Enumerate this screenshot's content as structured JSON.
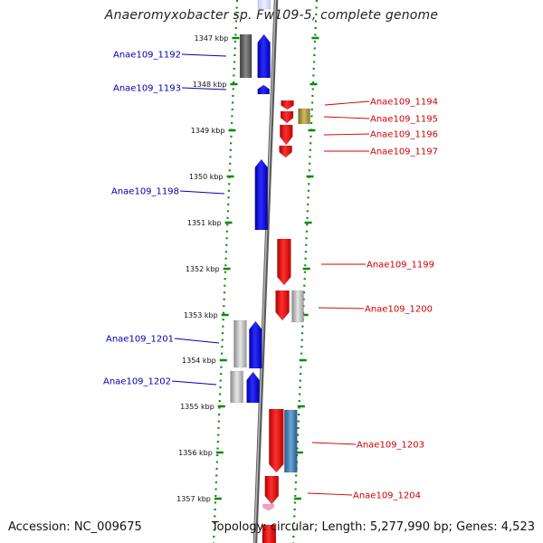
{
  "header": {
    "title": "Anaeromyxobacter sp. Fw109-5, complete genome"
  },
  "footer": {
    "accession": "Accession: NC_009675",
    "summary": "Topology: circular; Length: 5,277,990 bp; Genes: 4,523"
  },
  "colors": {
    "forward_strand": "#ff0000",
    "reverse_strand": "#0000ff",
    "left_label": "#0000b0",
    "right_label": "#d00000",
    "scale_dots": "#0a8a0a",
    "backbone": "#888888",
    "other_gene": "#a8a8a8"
  },
  "ticks": [
    "1347 kbp",
    "1348 kbp",
    "1349 kbp",
    "1350 kbp",
    "1351 kbp",
    "1352 kbp",
    "1353 kbp",
    "1354 kbp",
    "1355 kbp",
    "1356 kbp",
    "1357 kbp"
  ],
  "genes": [
    {
      "id": "Anae109_1192",
      "side": "left",
      "strand": "reverse"
    },
    {
      "id": "Anae109_1193",
      "side": "left",
      "strand": "reverse"
    },
    {
      "id": "Anae109_1194",
      "side": "right",
      "strand": "forward"
    },
    {
      "id": "Anae109_1195",
      "side": "right",
      "strand": "forward"
    },
    {
      "id": "Anae109_1196",
      "side": "right",
      "strand": "forward"
    },
    {
      "id": "Anae109_1197",
      "side": "right",
      "strand": "forward"
    },
    {
      "id": "Anae109_1198",
      "side": "left",
      "strand": "reverse"
    },
    {
      "id": "Anae109_1199",
      "side": "right",
      "strand": "forward"
    },
    {
      "id": "Anae109_1200",
      "side": "right",
      "strand": "forward"
    },
    {
      "id": "Anae109_1201",
      "side": "left",
      "strand": "reverse"
    },
    {
      "id": "Anae109_1202",
      "side": "left",
      "strand": "reverse"
    },
    {
      "id": "Anae109_1203",
      "side": "right",
      "strand": "forward"
    },
    {
      "id": "Anae109_1204",
      "side": "right",
      "strand": "forward"
    }
  ]
}
